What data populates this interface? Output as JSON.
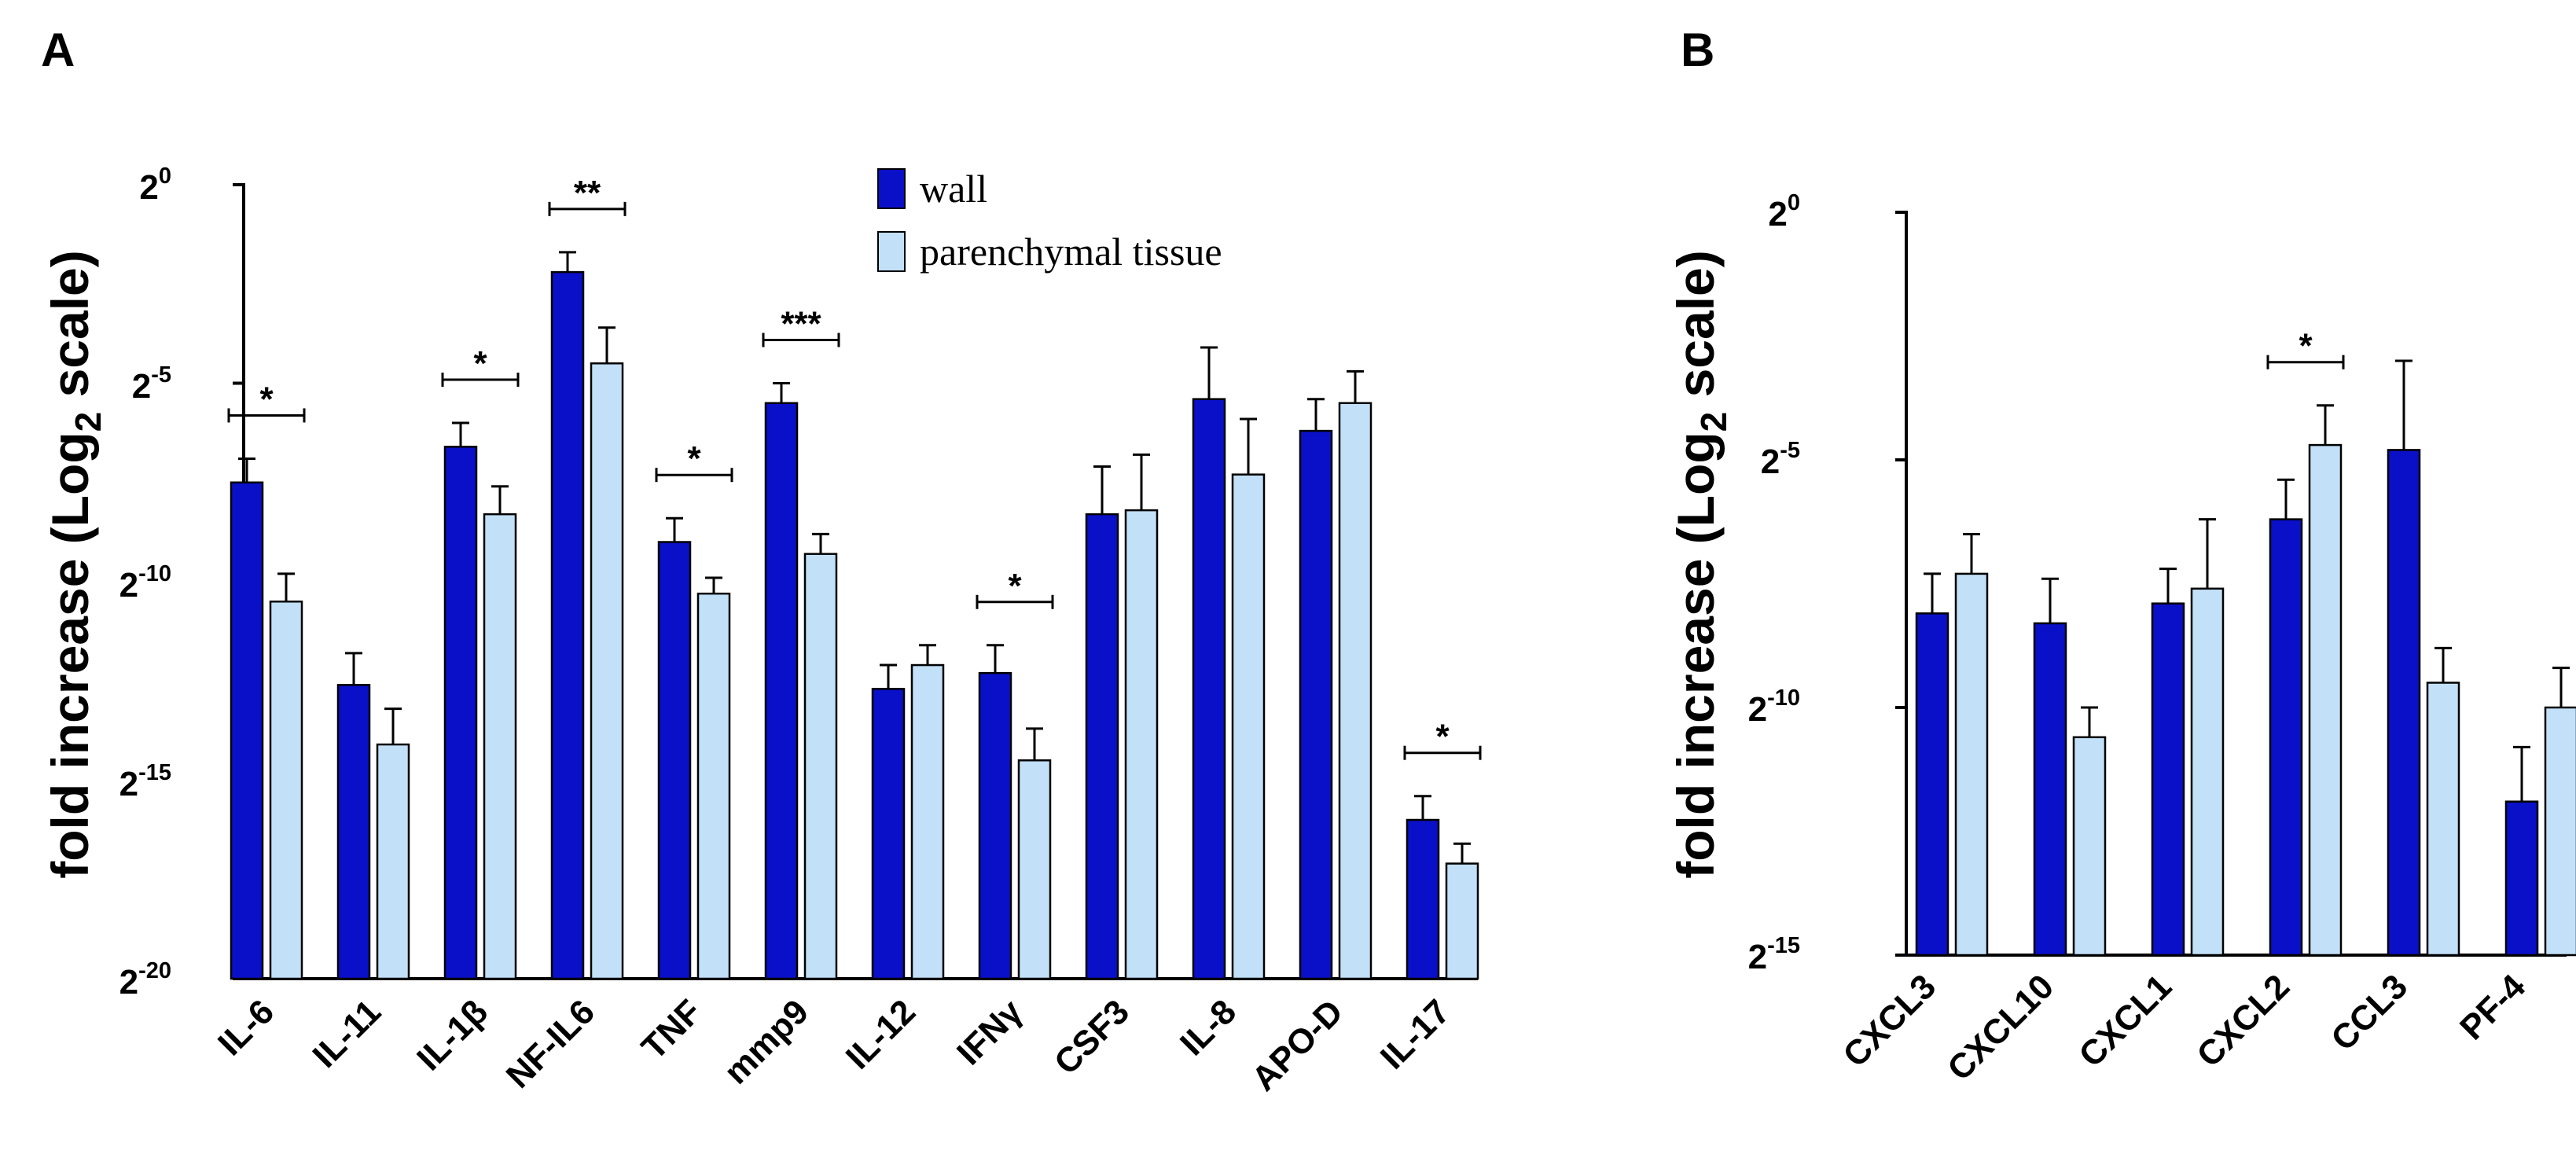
{
  "panels": [
    {
      "letter": "A"
    },
    {
      "letter": "B"
    }
  ],
  "colors": {
    "wall": "#0a10c8",
    "parenchymal": "#c2e0f7",
    "stroke": "#000000"
  },
  "chart_data": [
    {
      "type": "bar",
      "panel": "A",
      "ylabel_main": "fold increase (Log",
      "ylabel_sub": "2",
      "ylabel_tail": " scale)",
      "yscale": "log2",
      "ylim_exponents": [
        -20,
        0
      ],
      "yticks": [
        {
          "base": "2",
          "exp": "0",
          "value": 0
        },
        {
          "base": "2",
          "exp": "-5",
          "value": -5
        },
        {
          "base": "2",
          "exp": "-10",
          "value": -10
        },
        {
          "base": "2",
          "exp": "-15",
          "value": -15
        },
        {
          "base": "2",
          "exp": "-20",
          "value": -20
        }
      ],
      "categories": [
        "IL-6",
        "IL-11",
        "IL-1β",
        "NF-IL6",
        "TNF",
        "mmp9",
        "IL-12",
        "IFNγ",
        "CSF3",
        "IL-8",
        "APO-D",
        "IL-17"
      ],
      "series": [
        {
          "name": "wall",
          "values": [
            -7.5,
            -12.6,
            -6.6,
            -2.2,
            -9.0,
            -5.5,
            -12.7,
            -12.3,
            -8.3,
            -5.4,
            -6.2,
            -16.0
          ],
          "errors": [
            0.6,
            0.8,
            0.6,
            0.5,
            0.6,
            0.5,
            0.6,
            0.7,
            1.2,
            1.3,
            0.8,
            0.6
          ]
        },
        {
          "name": "parenchymal tissue",
          "values": [
            -10.5,
            -14.1,
            -8.3,
            -4.5,
            -10.3,
            -9.3,
            -12.1,
            -14.5,
            -8.2,
            -7.3,
            -5.5,
            -17.1
          ],
          "errors": [
            0.7,
            0.9,
            0.7,
            0.9,
            0.4,
            0.5,
            0.5,
            0.8,
            1.4,
            1.4,
            0.8,
            0.5
          ]
        }
      ],
      "significance": [
        {
          "category": "IL-6",
          "label": "*"
        },
        {
          "category": "IL-1β",
          "label": "*"
        },
        {
          "category": "NF-IL6",
          "label": "**"
        },
        {
          "category": "TNF",
          "label": "*"
        },
        {
          "category": "mmp9",
          "label": "***"
        },
        {
          "category": "IFNγ",
          "label": "*"
        },
        {
          "category": "IL-17",
          "label": "*"
        }
      ],
      "legend": [
        "wall",
        "parenchymal tissue"
      ],
      "legend_position": "top-center"
    },
    {
      "type": "bar",
      "panel": "B",
      "ylabel_main": "fold increase (Log",
      "ylabel_sub": "2",
      "ylabel_tail": " scale)",
      "yscale": "log2",
      "ylim_exponents": [
        -15,
        0
      ],
      "yticks": [
        {
          "base": "2",
          "exp": "0",
          "value": 0
        },
        {
          "base": "2",
          "exp": "-5",
          "value": -5
        },
        {
          "base": "2",
          "exp": "-10",
          "value": -10
        },
        {
          "base": "2",
          "exp": "-15",
          "value": -15
        }
      ],
      "categories": [
        "CXCL3",
        "CXCL10",
        "CXCL1",
        "CXCL2",
        "CCL3",
        "PF-4"
      ],
      "series": [
        {
          "name": "wall",
          "values": [
            -8.1,
            -8.3,
            -7.9,
            -6.2,
            -4.8,
            -11.9
          ],
          "errors": [
            0.8,
            0.9,
            0.7,
            0.8,
            1.8,
            1.1
          ]
        },
        {
          "name": "parenchymal tissue",
          "values": [
            -7.3,
            -10.6,
            -7.6,
            -4.7,
            -9.5,
            -10.0
          ],
          "errors": [
            0.8,
            0.6,
            1.4,
            0.8,
            0.7,
            0.8
          ]
        }
      ],
      "significance": [
        {
          "category": "CXCL2",
          "label": "*"
        }
      ]
    }
  ]
}
